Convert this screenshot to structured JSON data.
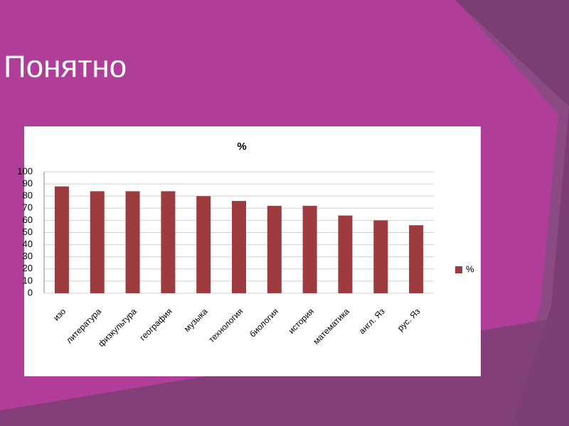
{
  "heading": "Понятно",
  "chart_data": {
    "type": "bar",
    "title": "%",
    "categories": [
      "изо",
      "литература",
      "физкультура",
      "география",
      "музыка",
      "технология",
      "биология",
      "история",
      "математика",
      "англ. Яз",
      "рус. Яз"
    ],
    "series": [
      {
        "name": "%",
        "color": "#9e3b3e",
        "values": [
          88,
          84,
          84,
          84,
          80,
          76,
          72,
          72,
          64,
          60,
          56
        ]
      }
    ],
    "ylim": [
      0,
      100
    ],
    "yticks": [
      0,
      10,
      20,
      30,
      40,
      50,
      60,
      70,
      80,
      90,
      100
    ],
    "grid": true,
    "legend": "right"
  }
}
